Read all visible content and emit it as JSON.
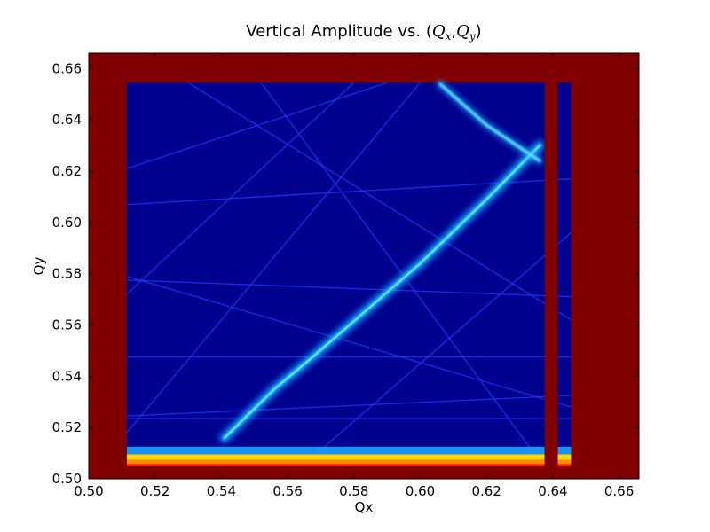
{
  "chart_data": {
    "type": "heatmap",
    "title": {
      "prefix": "Vertical Amplitude vs. (",
      "qx_base": "Q",
      "qx_sub": "x",
      "separator": ",",
      "qy_base": "Q",
      "qy_sub": "y",
      "suffix": ")"
    },
    "xlabel": "Qx",
    "ylabel": "Qy",
    "xlim": [
      0.5,
      0.666
    ],
    "ylim": [
      0.5,
      0.666
    ],
    "xticks": [
      0.5,
      0.52,
      0.54,
      0.56,
      0.58,
      0.6,
      0.62,
      0.64,
      0.66
    ],
    "yticks": [
      0.5,
      0.52,
      0.54,
      0.56,
      0.58,
      0.6,
      0.62,
      0.64,
      0.66
    ],
    "colormap": "jet",
    "colors": {
      "background_high": "#800000",
      "field_low": "#00008f",
      "resonance_line": "#1f3fff",
      "ridge": "#1aa3ff",
      "ridge_core": "#5ff0ff",
      "hot_red": "#ff2000",
      "hot_orange": "#ff8c00",
      "hot_yellow": "#ffd800"
    },
    "data_region": {
      "qx_range": [
        0.5115,
        0.6455
      ],
      "qy_range": [
        0.5,
        0.6545
      ]
    },
    "unstable_bands": [
      {
        "orientation": "vertical",
        "qx_range": [
          0.6375,
          0.6415
        ]
      },
      {
        "orientation": "horizontal",
        "qy_range": [
          0.5,
          0.5048
        ]
      }
    ],
    "main_resonance_ridge": [
      [
        0.541,
        0.516
      ],
      [
        0.556,
        0.535
      ],
      [
        0.568,
        0.548
      ],
      [
        0.6,
        0.584
      ],
      [
        0.62,
        0.609
      ],
      [
        0.636,
        0.63
      ]
    ],
    "upper_ridge": [
      [
        0.606,
        0.654
      ],
      [
        0.62,
        0.638
      ],
      [
        0.636,
        0.624
      ]
    ],
    "faint_lines": [
      {
        "from": [
          0.5115,
          0.5475
        ],
        "to": [
          0.6455,
          0.5475
        ]
      },
      {
        "from": [
          0.5115,
          0.5235
        ],
        "to": [
          0.6455,
          0.5235
        ]
      },
      {
        "from": [
          0.5115,
          0.518
        ],
        "to": [
          0.6,
          0.6545
        ]
      },
      {
        "from": [
          0.552,
          0.6545
        ],
        "to": [
          0.64,
          0.5
        ]
      },
      {
        "from": [
          0.53,
          0.6545
        ],
        "to": [
          0.6455,
          0.562
        ]
      },
      {
        "from": [
          0.5115,
          0.621
        ],
        "to": [
          0.59,
          0.6545
        ]
      },
      {
        "from": [
          0.5115,
          0.607
        ],
        "to": [
          0.6455,
          0.617
        ]
      },
      {
        "from": [
          0.56,
          0.5
        ],
        "to": [
          0.6455,
          0.596
        ]
      },
      {
        "from": [
          0.5115,
          0.572
        ],
        "to": [
          0.58,
          0.6545
        ]
      },
      {
        "from": [
          0.5115,
          0.5245
        ],
        "to": [
          0.6455,
          0.5325
        ]
      },
      {
        "from": [
          0.5115,
          0.579
        ],
        "to": [
          0.6455,
          0.528
        ]
      },
      {
        "from": [
          0.5115,
          0.5775
        ],
        "to": [
          0.6455,
          0.571
        ]
      }
    ]
  }
}
